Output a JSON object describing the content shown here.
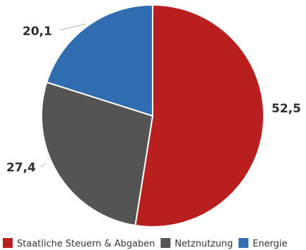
{
  "chart_data": {
    "type": "pie",
    "slices": [
      {
        "label": "Staatliche Steuern & Abgaben",
        "value": 52.5,
        "value_label": "52,5",
        "color": "#b81f1f"
      },
      {
        "label": "Netznutzung",
        "value": 27.4,
        "value_label": "27,4",
        "color": "#545454"
      },
      {
        "label": "Energie",
        "value": 20.1,
        "value_label": "20,1",
        "color": "#2f6db0"
      }
    ],
    "start_angle_deg": 0,
    "direction": "clockwise",
    "legend_position": "bottom"
  }
}
